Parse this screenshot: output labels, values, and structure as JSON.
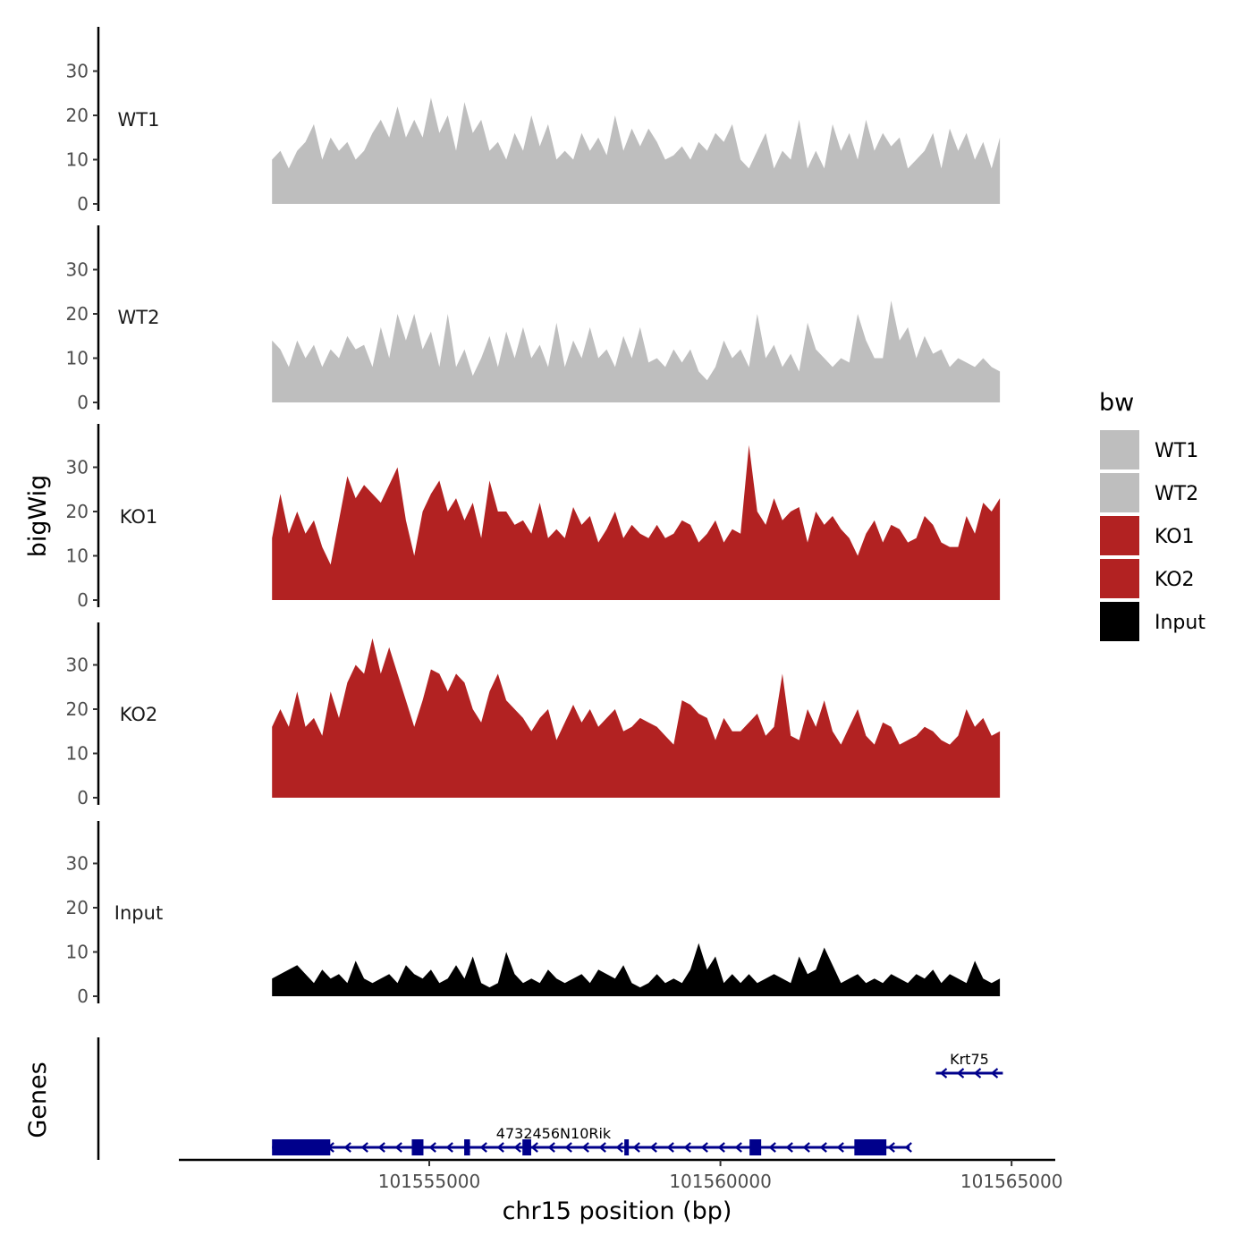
{
  "chart_data": {
    "type": "area",
    "ylabel": "bigWig",
    "xlabel": "chr15 position (bp)",
    "genes_label": "Genes",
    "xlim": [
      101550700,
      101565750
    ],
    "x_start": 101552300,
    "x_end": 101564800,
    "ylim": [
      0,
      40
    ],
    "yticks": [
      0,
      10,
      20,
      30
    ],
    "ytick_labels": [
      "0",
      "10",
      "20",
      "30"
    ],
    "xticks": [
      101555000,
      101560000,
      101565000
    ],
    "xtick_labels": [
      "101555000",
      "101560000",
      "101565000"
    ],
    "legend": {
      "title": "bw",
      "position": "right",
      "entries": [
        {
          "label": "WT1",
          "color": "#bebebe"
        },
        {
          "label": "WT2",
          "color": "#bebebe"
        },
        {
          "label": "KO1",
          "color": "#b22222"
        },
        {
          "label": "KO2",
          "color": "#b22222"
        },
        {
          "label": "Input",
          "color": "#000000"
        }
      ]
    },
    "series": [
      {
        "name": "WT1",
        "color": "#bebebe",
        "values": [
          10,
          12,
          8,
          12,
          14,
          18,
          10,
          15,
          12,
          14,
          10,
          12,
          16,
          19,
          15,
          22,
          15,
          19,
          15,
          24,
          16,
          20,
          12,
          23,
          16,
          19,
          12,
          14,
          10,
          16,
          12,
          20,
          13,
          18,
          10,
          12,
          10,
          16,
          12,
          15,
          11,
          20,
          12,
          17,
          13,
          17,
          14,
          10,
          11,
          13,
          10,
          14,
          12,
          16,
          14,
          18,
          10,
          8,
          12,
          16,
          8,
          12,
          10,
          19,
          8,
          12,
          8,
          18,
          12,
          16,
          10,
          19,
          12,
          16,
          13,
          15,
          8,
          10,
          12,
          16,
          8,
          17,
          12,
          16,
          10,
          14,
          8,
          15
        ]
      },
      {
        "name": "WT2",
        "color": "#bebebe",
        "values": [
          14,
          12,
          8,
          14,
          10,
          13,
          8,
          12,
          10,
          15,
          12,
          13,
          8,
          17,
          10,
          20,
          14,
          20,
          12,
          16,
          8,
          20,
          8,
          12,
          6,
          10,
          15,
          8,
          16,
          10,
          17,
          10,
          13,
          8,
          18,
          8,
          14,
          10,
          17,
          10,
          12,
          8,
          15,
          10,
          17,
          9,
          10,
          8,
          12,
          9,
          12,
          7,
          5,
          8,
          14,
          10,
          12,
          8,
          20,
          10,
          13,
          8,
          11,
          7,
          18,
          12,
          10,
          8,
          10,
          9,
          20,
          14,
          10,
          10,
          23,
          14,
          17,
          10,
          15,
          11,
          12,
          8,
          10,
          9,
          8,
          10,
          8,
          7
        ]
      },
      {
        "name": "KO1",
        "color": "#b22222",
        "values": [
          14,
          24,
          15,
          20,
          15,
          18,
          12,
          8,
          18,
          28,
          23,
          26,
          24,
          22,
          26,
          30,
          18,
          10,
          20,
          24,
          27,
          20,
          23,
          18,
          22,
          14,
          27,
          20,
          20,
          17,
          18,
          15,
          22,
          14,
          16,
          14,
          21,
          17,
          19,
          13,
          16,
          20,
          14,
          17,
          15,
          14,
          17,
          14,
          15,
          18,
          17,
          13,
          15,
          18,
          13,
          16,
          15,
          35,
          20,
          17,
          23,
          18,
          20,
          21,
          13,
          20,
          17,
          19,
          16,
          14,
          10,
          15,
          18,
          13,
          17,
          16,
          13,
          14,
          19,
          17,
          13,
          12,
          12,
          19,
          15,
          22,
          20,
          23
        ]
      },
      {
        "name": "KO2",
        "color": "#b22222",
        "values": [
          16,
          20,
          16,
          24,
          16,
          18,
          14,
          24,
          18,
          26,
          30,
          28,
          36,
          28,
          34,
          28,
          22,
          16,
          22,
          29,
          28,
          24,
          28,
          26,
          20,
          17,
          24,
          28,
          22,
          20,
          18,
          15,
          18,
          20,
          13,
          17,
          21,
          17,
          20,
          16,
          18,
          20,
          15,
          16,
          18,
          17,
          16,
          14,
          12,
          22,
          21,
          19,
          18,
          13,
          18,
          15,
          15,
          17,
          19,
          14,
          16,
          28,
          14,
          13,
          20,
          16,
          22,
          15,
          12,
          16,
          20,
          14,
          12,
          17,
          16,
          12,
          13,
          14,
          16,
          15,
          13,
          12,
          14,
          20,
          16,
          18,
          14,
          15
        ]
      },
      {
        "name": "Input",
        "color": "#000000",
        "values": [
          4,
          5,
          6,
          7,
          5,
          3,
          6,
          4,
          5,
          3,
          8,
          4,
          3,
          4,
          5,
          3,
          7,
          5,
          4,
          6,
          3,
          4,
          7,
          4,
          9,
          3,
          2,
          3,
          10,
          5,
          3,
          4,
          3,
          6,
          4,
          3,
          4,
          5,
          3,
          6,
          5,
          4,
          7,
          3,
          2,
          3,
          5,
          3,
          4,
          3,
          6,
          12,
          6,
          9,
          3,
          5,
          3,
          5,
          3,
          4,
          5,
          4,
          3,
          9,
          5,
          6,
          11,
          7,
          3,
          4,
          5,
          3,
          4,
          3,
          5,
          4,
          3,
          5,
          4,
          6,
          3,
          5,
          4,
          3,
          8,
          4,
          3,
          4
        ]
      }
    ],
    "genes": [
      {
        "name": "4732456N10Rik",
        "start": 101552300,
        "end": 101563250,
        "strand": "-",
        "row": 0,
        "exons": [
          [
            101552300,
            101553300
          ],
          [
            101554700,
            101554900
          ],
          [
            101555600,
            101555700
          ],
          [
            101556600,
            101556750
          ],
          [
            101558350,
            101558420
          ],
          [
            101560500,
            101560700
          ],
          [
            101562300,
            101562850
          ]
        ]
      },
      {
        "name": "Krt75",
        "start": 101563700,
        "end": 101564850,
        "strand": "-",
        "row": 1,
        "exons": []
      }
    ]
  }
}
